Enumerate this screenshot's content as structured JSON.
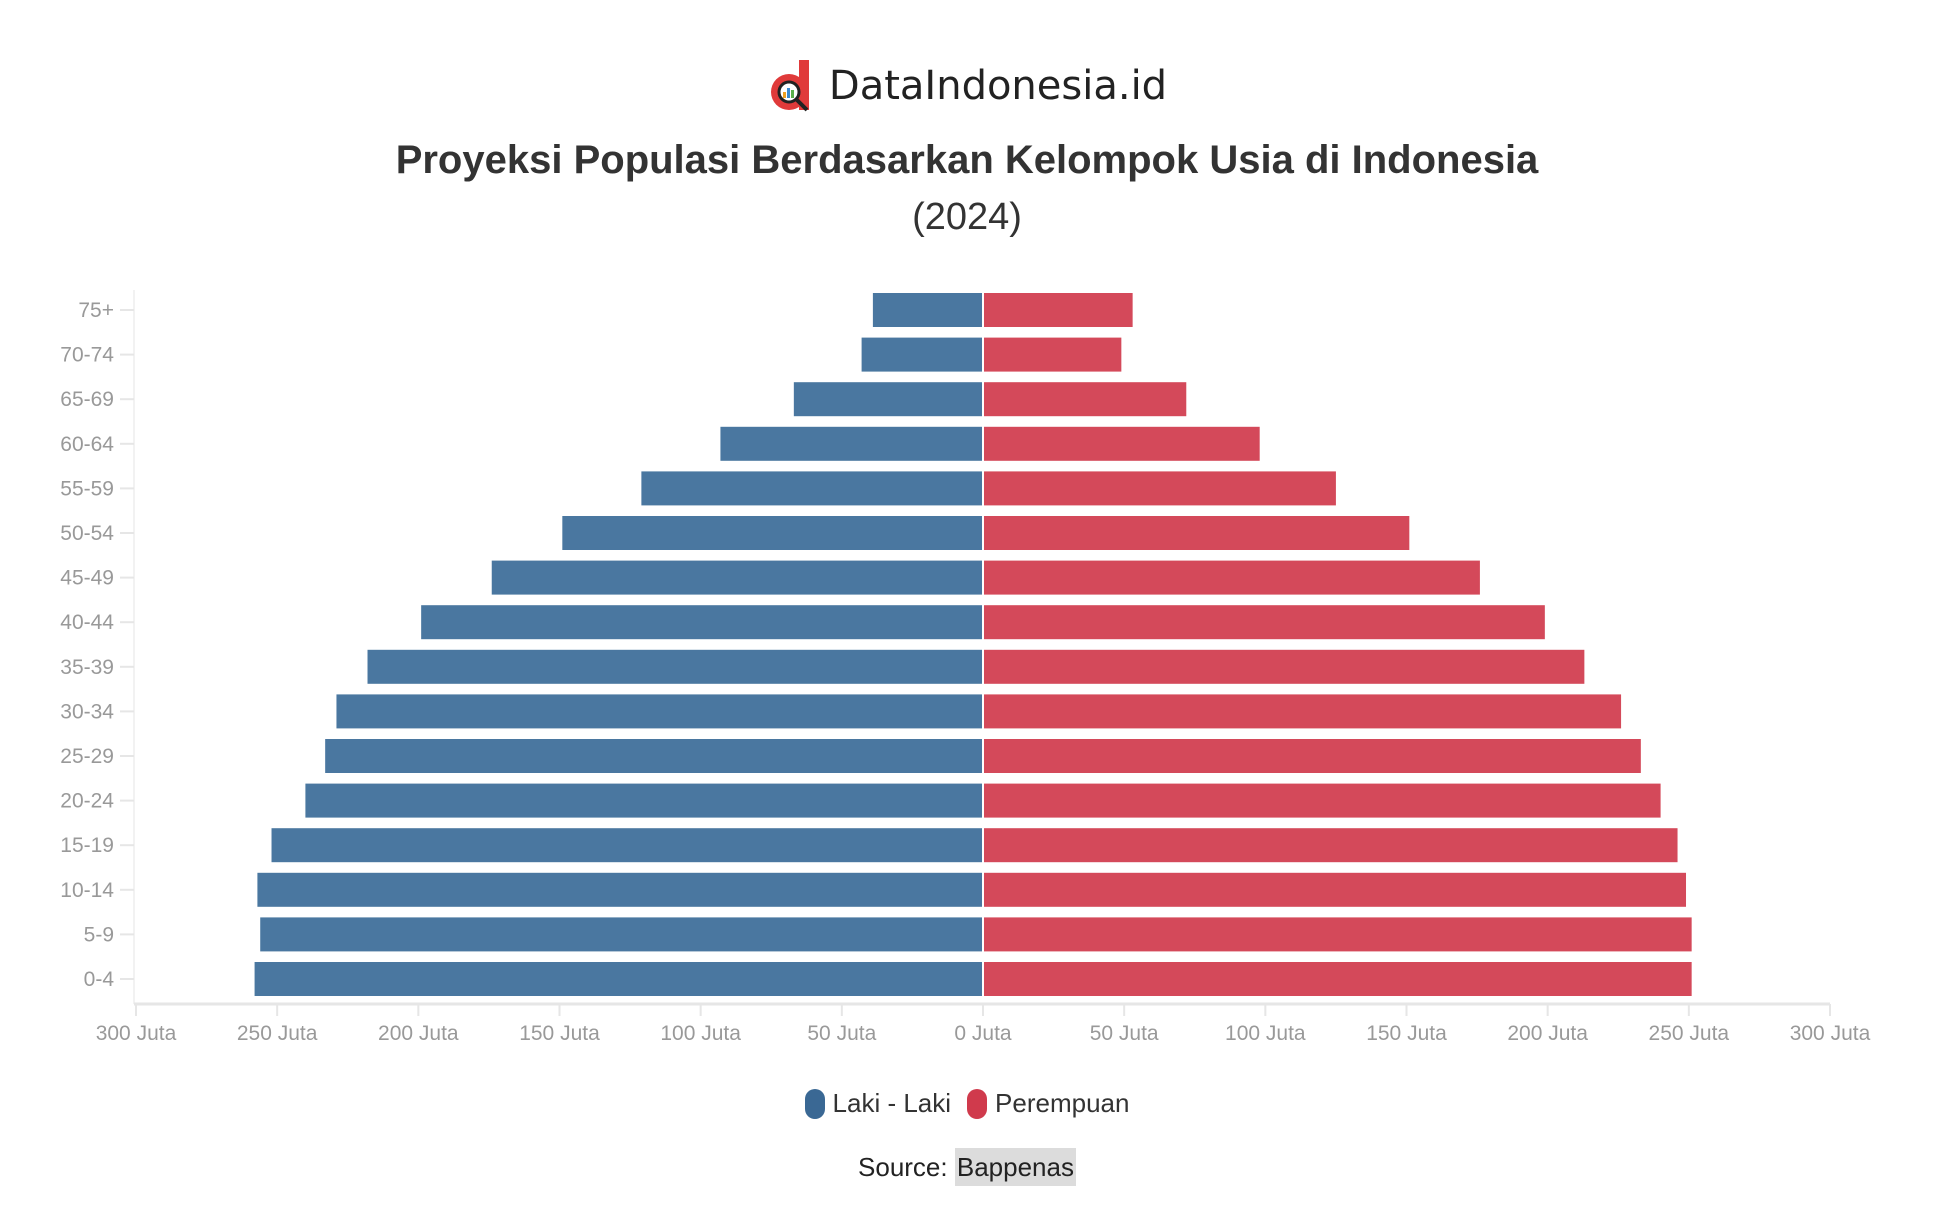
{
  "header": {
    "brand": "DataIndonesia.id"
  },
  "chart_data": {
    "type": "bar",
    "orientation": "horizontal",
    "title": "Proyeksi Populasi Berdasarkan Kelompok Usia di Indonesia",
    "subtitle": "(2024)",
    "categories": [
      "75+",
      "70-74",
      "65-69",
      "60-64",
      "55-59",
      "50-54",
      "45-49",
      "40-44",
      "35-39",
      "30-34",
      "25-29",
      "20-24",
      "15-19",
      "10-14",
      "5-9",
      "0-4"
    ],
    "series": [
      {
        "name": "Laki - Laki",
        "color": "#4a77a0",
        "side": "left",
        "values": [
          39,
          43,
          67,
          93,
          121,
          149,
          174,
          199,
          218,
          229,
          233,
          240,
          252,
          257,
          256,
          258
        ]
      },
      {
        "name": "Perempuan",
        "color": "#d4495a",
        "side": "right",
        "values": [
          53,
          49,
          72,
          98,
          125,
          151,
          176,
          199,
          213,
          226,
          233,
          240,
          246,
          249,
          251,
          251
        ]
      }
    ],
    "xlim": [
      -300,
      300
    ],
    "xticks": [
      "300 Juta",
      "250 Juta",
      "200 Juta",
      "150 Juta",
      "100 Juta",
      "50 Juta",
      "0 Juta",
      "50 Juta",
      "100 Juta",
      "150 Juta",
      "200 Juta",
      "250 Juta",
      "300 Juta"
    ],
    "xtick_values": [
      -300,
      -250,
      -200,
      -150,
      -100,
      -50,
      0,
      50,
      100,
      150,
      200,
      250,
      300
    ],
    "grid": false,
    "legend_position": "bottom"
  },
  "footer": {
    "source_label": "Source:",
    "source_name": "Bappenas"
  }
}
